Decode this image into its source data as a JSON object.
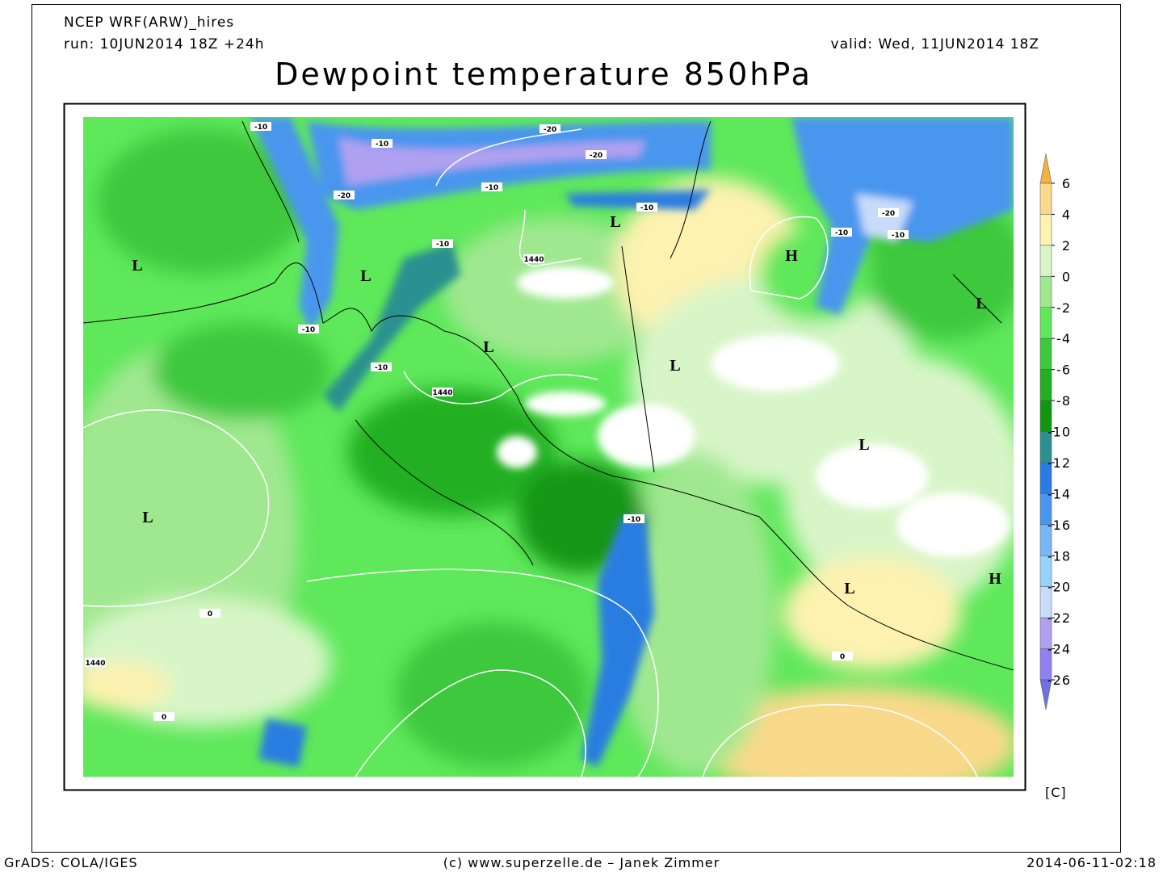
{
  "header": {
    "model": "NCEP WRF(ARW)_hires",
    "run": "run: 10JUN2014 18Z +24h",
    "valid": "valid: Wed, 11JUN2014 18Z",
    "title": "Dewpoint temperature 850hPa"
  },
  "map": {
    "pressure_centers": [
      "L",
      "L",
      "L",
      "L",
      "H",
      "L",
      "L",
      "L",
      "L",
      "L",
      "H"
    ],
    "contour_labels": [
      "-10",
      "-10",
      "-20",
      "-20",
      "-20",
      "-10",
      "-10",
      "-10",
      "1440",
      "-10",
      "-10",
      "1440",
      "-10",
      "1440",
      "0",
      "-10",
      "-10",
      "-20",
      "0",
      "0"
    ]
  },
  "colorbar": {
    "levels": [
      6,
      4,
      2,
      0,
      -2,
      -4,
      -6,
      -8,
      -10,
      -12,
      -14,
      -16,
      -18,
      -20,
      -22,
      -24,
      -26
    ],
    "colors": [
      "#f5b042",
      "#f9d98a",
      "#fdf2b0",
      "#d8f5c8",
      "#a0e890",
      "#5ee85a",
      "#3cc83c",
      "#22b022",
      "#129612",
      "#2a9090",
      "#2a7de0",
      "#4a96ee",
      "#78b6f6",
      "#96d2fa",
      "#c8dcfa",
      "#b0a0f0",
      "#9080f0",
      "#7070e0"
    ],
    "unit": "[C]"
  },
  "footer": {
    "left": "GrADS: COLA/IGES",
    "center": "(c) www.superzelle.de – Janek Zimmer",
    "right": "2014-06-11-02:18"
  }
}
